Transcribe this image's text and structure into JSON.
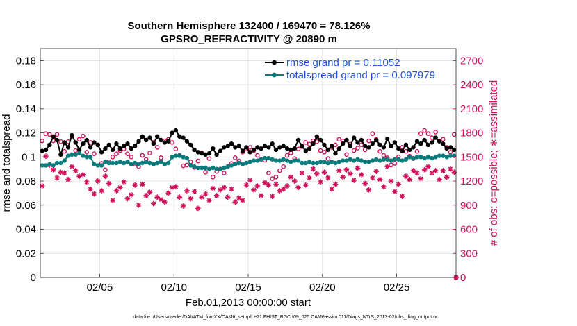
{
  "chart_data": {
    "type": "line",
    "title_line1": "Southern Hemisphere 132400 / 169470 = 78.126%",
    "title_line2": "GPSRO_REFRACTIVITY @ 20890 m",
    "xlabel": "Feb.01,2013 00:00:00 start",
    "ylabel_left": "rmse and totalspread",
    "ylabel_right": "# of obs: o=possible; ∗=assimilated",
    "footnote": "data file: /Users/raeder/DAI/ATM_forcXX/CAM6_setup/f.e21.FHIST_BGC.f09_025.CAM6assim.011/Diags_NTrS_2013-02/obs_diag_output.nc",
    "xlim": [
      1.0,
      29.0
    ],
    "xticks": [
      {
        "v": 5,
        "label": "02/05"
      },
      {
        "v": 10,
        "label": "02/10"
      },
      {
        "v": 15,
        "label": "02/15"
      },
      {
        "v": 20,
        "label": "02/20"
      },
      {
        "v": 25,
        "label": "02/25"
      }
    ],
    "ylim_left": [
      0,
      0.19
    ],
    "yticks_left": [
      "0",
      "0.02",
      "0.04",
      "0.06",
      "0.08",
      "0.1",
      "0.12",
      "0.14",
      "0.16",
      "0.18"
    ],
    "ylim_right": [
      0,
      2850
    ],
    "yticks_right": [
      "0",
      "300",
      "600",
      "900",
      "1200",
      "1500",
      "1800",
      "2100",
      "2400",
      "2700"
    ],
    "legend_position": "top-right",
    "colors": {
      "rmse": "#000000",
      "spread": "#0b7b7b",
      "obs": "#d0105a",
      "legend_text": "#1f4fd8",
      "grid": "#d9d9d9"
    },
    "series": [
      {
        "name": "rmse grand pr = 0.11052",
        "key": "rmse",
        "axis": "left",
        "marker": "dot",
        "x": [
          1.125,
          1.375,
          1.625,
          1.875,
          2.125,
          2.375,
          2.625,
          2.875,
          3.125,
          3.375,
          3.625,
          3.875,
          4.125,
          4.375,
          4.625,
          4.875,
          5.125,
          5.375,
          5.625,
          5.875,
          6.125,
          6.375,
          6.625,
          6.875,
          7.125,
          7.375,
          7.625,
          7.875,
          8.125,
          8.375,
          8.625,
          8.875,
          9.125,
          9.375,
          9.625,
          9.875,
          10.125,
          10.375,
          10.625,
          10.875,
          11.125,
          11.375,
          11.625,
          11.875,
          12.125,
          12.375,
          12.625,
          12.875,
          13.125,
          13.375,
          13.625,
          13.875,
          14.125,
          14.375,
          14.625,
          14.875,
          15.125,
          15.375,
          15.625,
          15.875,
          16.125,
          16.375,
          16.625,
          16.875,
          17.125,
          17.375,
          17.625,
          17.875,
          18.125,
          18.375,
          18.625,
          18.875,
          19.125,
          19.375,
          19.625,
          19.875,
          20.125,
          20.375,
          20.625,
          20.875,
          21.125,
          21.375,
          21.625,
          21.875,
          22.125,
          22.375,
          22.625,
          22.875,
          23.125,
          23.375,
          23.625,
          23.875,
          24.125,
          24.375,
          24.625,
          24.875,
          25.125,
          25.375,
          25.625,
          25.875,
          26.125,
          26.375,
          26.625,
          26.875,
          27.125,
          27.375,
          27.625,
          27.875,
          28.125,
          28.375,
          28.625,
          28.875
        ],
        "y": [
          0.105,
          0.106,
          0.11,
          0.117,
          0.114,
          0.102,
          0.112,
          0.108,
          0.118,
          0.112,
          0.106,
          0.111,
          0.114,
          0.108,
          0.112,
          0.11,
          0.104,
          0.107,
          0.11,
          0.106,
          0.111,
          0.107,
          0.109,
          0.111,
          0.107,
          0.109,
          0.113,
          0.117,
          0.114,
          0.116,
          0.111,
          0.117,
          0.114,
          0.112,
          0.113,
          0.12,
          0.122,
          0.117,
          0.116,
          0.113,
          0.11,
          0.106,
          0.104,
          0.103,
          0.102,
          0.103,
          0.107,
          0.102,
          0.105,
          0.108,
          0.109,
          0.111,
          0.108,
          0.109,
          0.105,
          0.108,
          0.104,
          0.106,
          0.108,
          0.107,
          0.109,
          0.108,
          0.111,
          0.106,
          0.108,
          0.109,
          0.107,
          0.106,
          0.107,
          0.114,
          0.109,
          0.105,
          0.107,
          0.111,
          0.117,
          0.114,
          0.11,
          0.106,
          0.109,
          0.103,
          0.107,
          0.111,
          0.114,
          0.109,
          0.116,
          0.112,
          0.114,
          0.109,
          0.108,
          0.111,
          0.114,
          0.11,
          0.108,
          0.115,
          0.109,
          0.112,
          0.107,
          0.105,
          0.11,
          0.106,
          0.108,
          0.113,
          0.111,
          0.114,
          0.11,
          0.112,
          0.116,
          0.113,
          0.111,
          0.107,
          0.108,
          0.106
        ]
      },
      {
        "name": "totalspread grand pr = 0.097979",
        "key": "spread",
        "axis": "left",
        "marker": "dot",
        "x": [
          1.125,
          1.375,
          1.625,
          1.875,
          2.125,
          2.375,
          2.625,
          2.875,
          3.125,
          3.375,
          3.625,
          3.875,
          4.125,
          4.375,
          4.625,
          4.875,
          5.125,
          5.375,
          5.625,
          5.875,
          6.125,
          6.375,
          6.625,
          6.875,
          7.125,
          7.375,
          7.625,
          7.875,
          8.125,
          8.375,
          8.625,
          8.875,
          9.125,
          9.375,
          9.625,
          9.875,
          10.125,
          10.375,
          10.625,
          10.875,
          11.125,
          11.375,
          11.625,
          11.875,
          12.125,
          12.375,
          12.625,
          12.875,
          13.125,
          13.375,
          13.625,
          13.875,
          14.125,
          14.375,
          14.625,
          14.875,
          15.125,
          15.375,
          15.625,
          15.875,
          16.125,
          16.375,
          16.625,
          16.875,
          17.125,
          17.375,
          17.625,
          17.875,
          18.125,
          18.375,
          18.625,
          18.875,
          19.125,
          19.375,
          19.625,
          19.875,
          20.125,
          20.375,
          20.625,
          20.875,
          21.125,
          21.375,
          21.625,
          21.875,
          22.125,
          22.375,
          22.625,
          22.875,
          23.125,
          23.375,
          23.625,
          23.875,
          24.125,
          24.375,
          24.625,
          24.875,
          25.125,
          25.375,
          25.625,
          25.875,
          26.125,
          26.375,
          26.625,
          26.875,
          27.125,
          27.375,
          27.625,
          27.875,
          28.125,
          28.375,
          28.625,
          28.875
        ],
        "y": [
          0.093,
          0.093,
          0.094,
          0.093,
          0.095,
          0.095,
          0.097,
          0.101,
          0.102,
          0.102,
          0.103,
          0.101,
          0.1,
          0.1,
          0.094,
          0.093,
          0.093,
          0.096,
          0.095,
          0.095,
          0.095,
          0.096,
          0.095,
          0.096,
          0.094,
          0.095,
          0.094,
          0.095,
          0.096,
          0.095,
          0.094,
          0.095,
          0.096,
          0.094,
          0.095,
          0.1,
          0.101,
          0.101,
          0.1,
          0.099,
          0.093,
          0.092,
          0.091,
          0.091,
          0.091,
          0.09,
          0.091,
          0.09,
          0.09,
          0.091,
          0.092,
          0.093,
          0.094,
          0.095,
          0.094,
          0.095,
          0.096,
          0.097,
          0.097,
          0.098,
          0.099,
          0.099,
          0.098,
          0.097,
          0.097,
          0.098,
          0.097,
          0.096,
          0.097,
          0.097,
          0.095,
          0.095,
          0.096,
          0.095,
          0.095,
          0.096,
          0.096,
          0.095,
          0.096,
          0.095,
          0.096,
          0.097,
          0.097,
          0.098,
          0.097,
          0.098,
          0.097,
          0.096,
          0.096,
          0.097,
          0.098,
          0.097,
          0.098,
          0.098,
          0.097,
          0.098,
          0.098,
          0.097,
          0.098,
          0.1,
          0.099,
          0.1,
          0.1,
          0.099,
          0.1,
          0.099,
          0.1,
          0.101,
          0.101,
          0.1,
          0.101,
          0.101
        ]
      },
      {
        "name": "possible",
        "key": "obs_possible",
        "axis": "right",
        "marker": "circle",
        "x": [
          1.125,
          1.375,
          1.625,
          1.875,
          2.125,
          2.375,
          2.625,
          2.875,
          3.125,
          3.375,
          3.625,
          3.875,
          4.125,
          4.375,
          4.625,
          4.875,
          5.125,
          5.375,
          5.625,
          5.875,
          6.125,
          6.375,
          6.625,
          6.875,
          7.125,
          7.375,
          7.625,
          7.875,
          8.125,
          8.375,
          8.625,
          8.875,
          9.125,
          9.375,
          9.625,
          9.875,
          10.125,
          10.375,
          10.625,
          10.875,
          11.125,
          11.375,
          11.625,
          11.875,
          12.125,
          12.375,
          12.625,
          12.875,
          13.125,
          13.375,
          13.625,
          13.875,
          14.125,
          14.375,
          14.625,
          14.875,
          15.125,
          15.375,
          15.625,
          15.875,
          16.125,
          16.375,
          16.625,
          16.875,
          17.125,
          17.375,
          17.625,
          17.875,
          18.125,
          18.375,
          18.625,
          18.875,
          19.125,
          19.375,
          19.625,
          19.875,
          20.125,
          20.375,
          20.625,
          20.875,
          21.125,
          21.375,
          21.625,
          21.875,
          22.125,
          22.375,
          22.625,
          22.875,
          23.125,
          23.375,
          23.625,
          23.875,
          24.125,
          24.375,
          24.625,
          24.875,
          25.125,
          25.375,
          25.625,
          25.875,
          26.125,
          26.375,
          26.625,
          26.875,
          27.125,
          27.375,
          27.625,
          27.875,
          28.125,
          28.375,
          28.625,
          28.875
        ],
        "y": [
          1700,
          1790,
          1780,
          1700,
          1780,
          1690,
          1570,
          1690,
          1760,
          1580,
          1720,
          1760,
          1560,
          1680,
          1540,
          1650,
          1420,
          1340,
          1440,
          1500,
          1540,
          1580,
          1600,
          1540,
          1500,
          1410,
          1380,
          1520,
          1470,
          1550,
          1680,
          1620,
          1490,
          1700,
          1720,
          1680,
          1600,
          1520,
          1390,
          1400,
          1440,
          1370,
          1450,
          1550,
          1310,
          1480,
          1250,
          1320,
          1350,
          1300,
          1380,
          1420,
          1490,
          1450,
          1560,
          1600,
          1620,
          1580,
          1520,
          1470,
          1460,
          1300,
          1230,
          1250,
          1330,
          1380,
          1520,
          1550,
          1480,
          1600,
          1630,
          1680,
          1660,
          1700,
          1690,
          1580,
          1560,
          1480,
          1620,
          1650,
          1720,
          1700,
          1530,
          1660,
          1580,
          1610,
          1650,
          1590,
          1700,
          1790,
          1720,
          1570,
          1520,
          1490,
          1400,
          1420,
          1500,
          1620,
          1570,
          1510,
          1480,
          1570,
          1790,
          1830,
          1790,
          1740,
          1810,
          1700,
          1720,
          1620,
          1560,
          1780
        ]
      },
      {
        "name": "assimilated",
        "key": "obs_assimilated",
        "axis": "right",
        "marker": "star",
        "x": [
          1.125,
          1.375,
          1.625,
          1.875,
          2.125,
          2.375,
          2.625,
          2.875,
          3.125,
          3.375,
          3.625,
          3.875,
          4.125,
          4.375,
          4.625,
          4.875,
          5.125,
          5.375,
          5.625,
          5.875,
          6.125,
          6.375,
          6.625,
          6.875,
          7.125,
          7.375,
          7.625,
          7.875,
          8.125,
          8.375,
          8.625,
          8.875,
          9.125,
          9.375,
          9.625,
          9.875,
          10.125,
          10.375,
          10.625,
          10.875,
          11.125,
          11.375,
          11.625,
          11.875,
          12.125,
          12.375,
          12.625,
          12.875,
          13.125,
          13.375,
          13.625,
          13.875,
          14.125,
          14.375,
          14.625,
          14.875,
          15.125,
          15.375,
          15.625,
          15.875,
          16.125,
          16.375,
          16.625,
          16.875,
          17.125,
          17.375,
          17.625,
          17.875,
          18.125,
          18.375,
          18.625,
          18.875,
          19.125,
          19.375,
          19.625,
          19.875,
          20.125,
          20.375,
          20.625,
          20.875,
          21.125,
          21.375,
          21.625,
          21.875,
          22.125,
          22.375,
          22.625,
          22.875,
          23.125,
          23.375,
          23.625,
          23.875,
          24.125,
          24.375,
          24.625,
          24.875,
          25.125,
          25.375,
          25.625,
          25.875,
          26.125,
          26.375,
          26.625,
          26.875,
          27.125,
          27.375,
          27.625,
          27.875,
          28.125,
          28.375,
          28.625,
          28.875
        ],
        "y": [
          1140,
          1510,
          1400,
          1340,
          1240,
          1310,
          1300,
          1220,
          1380,
          1330,
          1260,
          1280,
          1190,
          1100,
          1040,
          1200,
          1080,
          1260,
          1170,
          960,
          1080,
          1120,
          1190,
          980,
          1030,
          1150,
          900,
          1160,
          1020,
          1060,
          920,
          1000,
          970,
          940,
          1050,
          1120,
          1130,
          1000,
          890,
          1080,
          980,
          1070,
          860,
          1000,
          1040,
          960,
          1110,
          1020,
          1090,
          1120,
          1000,
          1100,
          940,
          990,
          960,
          1150,
          1210,
          1090,
          1140,
          1020,
          1180,
          1150,
          1010,
          1160,
          1080,
          1100,
          1140,
          1250,
          1200,
          1120,
          1300,
          1150,
          1240,
          1350,
          1290,
          1190,
          1310,
          1240,
          1100,
          1160,
          1330,
          1250,
          1340,
          1290,
          1210,
          1360,
          1280,
          1170,
          1090,
          1240,
          1320,
          1220,
          1130,
          1380,
          1200,
          1070,
          1160,
          1010,
          1260,
          1220,
          1330,
          1300,
          1230,
          1340,
          1380,
          1300,
          1330,
          1220,
          1330,
          1250,
          1350,
          1310
        ]
      }
    ]
  }
}
